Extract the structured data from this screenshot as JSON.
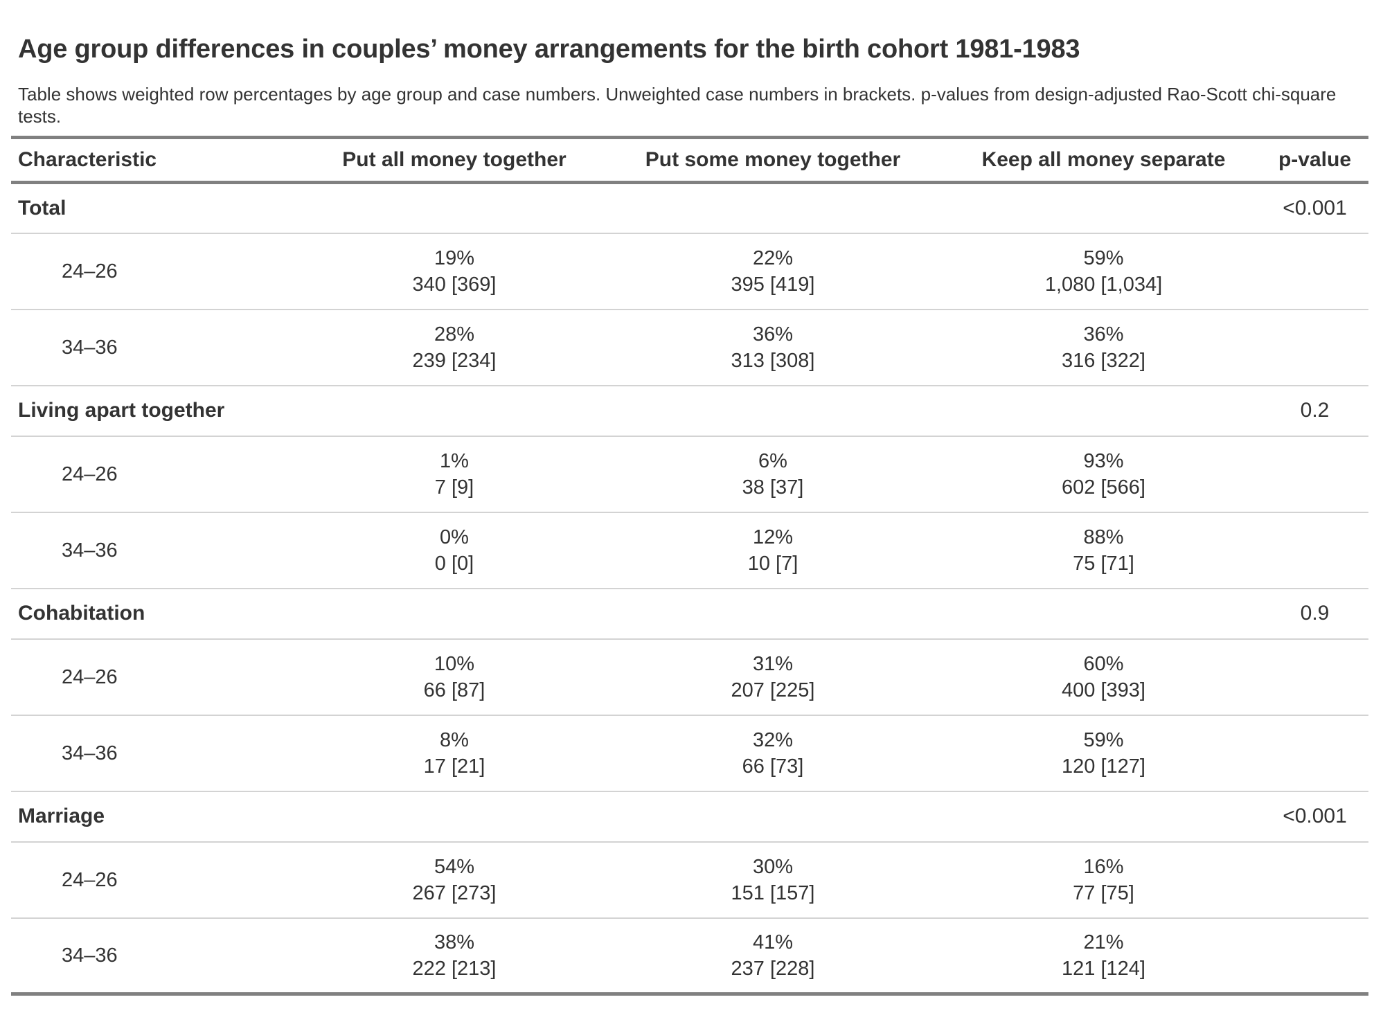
{
  "chart_data": {
    "type": "table",
    "title": "Age group differences in couples’ money arrangements for the birth cohort 1981-1983",
    "subtitle": "Table shows weighted row percentages by age group and case numbers. Unweighted case numbers in brackets. p-values from design-adjusted Rao-Scott chi-square tests.",
    "columns": [
      "Characteristic",
      "Put all money together",
      "Put some money together",
      "Keep all money separate",
      "p-value"
    ],
    "groups": [
      {
        "label": "Total",
        "p_value": "<0.001",
        "rows": [
          {
            "age": "24–26",
            "cells": [
              {
                "pct": "19%",
                "n": "340 [369]"
              },
              {
                "pct": "22%",
                "n": "395 [419]"
              },
              {
                "pct": "59%",
                "n": "1,080 [1,034]"
              }
            ]
          },
          {
            "age": "34–36",
            "cells": [
              {
                "pct": "28%",
                "n": "239 [234]"
              },
              {
                "pct": "36%",
                "n": "313 [308]"
              },
              {
                "pct": "36%",
                "n": "316 [322]"
              }
            ]
          }
        ]
      },
      {
        "label": "Living apart together",
        "p_value": "0.2",
        "rows": [
          {
            "age": "24–26",
            "cells": [
              {
                "pct": "1%",
                "n": "7 [9]"
              },
              {
                "pct": "6%",
                "n": "38 [37]"
              },
              {
                "pct": "93%",
                "n": "602 [566]"
              }
            ]
          },
          {
            "age": "34–36",
            "cells": [
              {
                "pct": "0%",
                "n": "0 [0]"
              },
              {
                "pct": "12%",
                "n": "10 [7]"
              },
              {
                "pct": "88%",
                "n": "75 [71]"
              }
            ]
          }
        ]
      },
      {
        "label": "Cohabitation",
        "p_value": "0.9",
        "rows": [
          {
            "age": "24–26",
            "cells": [
              {
                "pct": "10%",
                "n": "66 [87]"
              },
              {
                "pct": "31%",
                "n": "207 [225]"
              },
              {
                "pct": "60%",
                "n": "400 [393]"
              }
            ]
          },
          {
            "age": "34–36",
            "cells": [
              {
                "pct": "8%",
                "n": "17 [21]"
              },
              {
                "pct": "32%",
                "n": "66 [73]"
              },
              {
                "pct": "59%",
                "n": "120 [127]"
              }
            ]
          }
        ]
      },
      {
        "label": "Marriage",
        "p_value": "<0.001",
        "rows": [
          {
            "age": "24–26",
            "cells": [
              {
                "pct": "54%",
                "n": "267 [273]"
              },
              {
                "pct": "30%",
                "n": "151 [157]"
              },
              {
                "pct": "16%",
                "n": "77 [75]"
              }
            ]
          },
          {
            "age": "34–36",
            "cells": [
              {
                "pct": "38%",
                "n": "222 [213]"
              },
              {
                "pct": "41%",
                "n": "237 [228]"
              },
              {
                "pct": "21%",
                "n": "121 [124]"
              }
            ]
          }
        ]
      }
    ]
  },
  "colors": {
    "text": "#333333",
    "heavy_rule": "#808080",
    "light_rule": "#d3d3d3",
    "background": "#ffffff"
  }
}
